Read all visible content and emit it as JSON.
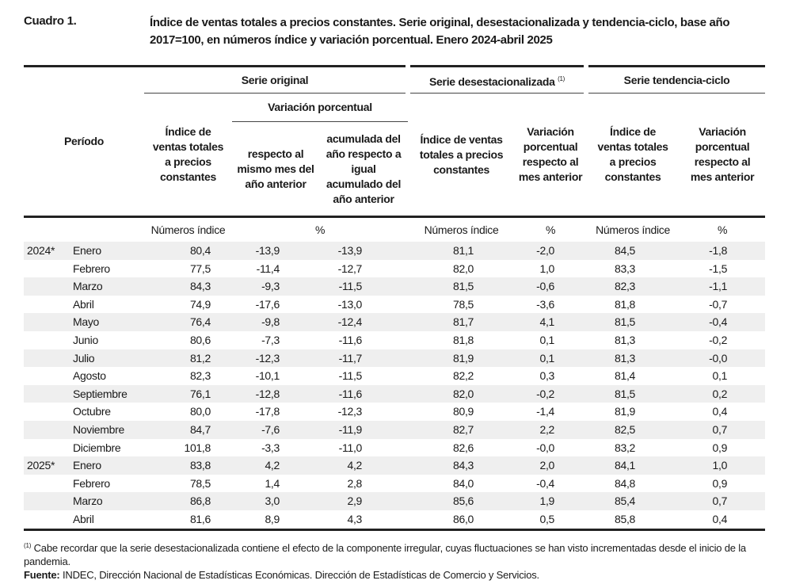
{
  "header": {
    "label": "Cuadro 1.",
    "title": "Índice de ventas totales a precios constantes. Serie original, desestacionalizada y tendencia-ciclo, base año 2017=100, en números índice y variación porcentual. Enero 2024-abril 2025"
  },
  "columns": {
    "periodo": "Período",
    "serie_original": "Serie original",
    "serie_desestacionalizada": "Serie desestacionalizada",
    "desest_note_mark": "(1)",
    "serie_tendencia": "Serie tendencia-ciclo",
    "variacion_porcentual": "Variación porcentual",
    "indice": "Índice de ventas totales a precios constantes",
    "resp_mismo_mes": "respecto al mismo mes del año anterior",
    "acumulada": "acumulada del año respecto a igual acumulado del año anterior",
    "var_mes_anterior": "Variación porcentual respecto al mes anterior"
  },
  "units": [
    "Números índice",
    "%",
    "Números índice",
    "%",
    "Números índice",
    "%"
  ],
  "rows": [
    {
      "year": "2024*",
      "month": "Enero",
      "values": [
        "80,4",
        "-13,9",
        "-13,9",
        "81,1",
        "-2,0",
        "84,5",
        "-1,8"
      ]
    },
    {
      "year": "",
      "month": "Febrero",
      "values": [
        "77,5",
        "-11,4",
        "-12,7",
        "82,0",
        "1,0",
        "83,3",
        "-1,5"
      ]
    },
    {
      "year": "",
      "month": "Marzo",
      "values": [
        "84,3",
        "-9,3",
        "-11,5",
        "81,5",
        "-0,6",
        "82,3",
        "-1,1"
      ]
    },
    {
      "year": "",
      "month": "Abril",
      "values": [
        "74,9",
        "-17,6",
        "-13,0",
        "78,5",
        "-3,6",
        "81,8",
        "-0,7"
      ]
    },
    {
      "year": "",
      "month": "Mayo",
      "values": [
        "76,4",
        "-9,8",
        "-12,4",
        "81,7",
        "4,1",
        "81,5",
        "-0,4"
      ]
    },
    {
      "year": "",
      "month": "Junio",
      "values": [
        "80,6",
        "-7,3",
        "-11,6",
        "81,8",
        "0,1",
        "81,3",
        "-0,2"
      ]
    },
    {
      "year": "",
      "month": "Julio",
      "values": [
        "81,2",
        "-12,3",
        "-11,7",
        "81,9",
        "0,1",
        "81,3",
        "-0,0"
      ]
    },
    {
      "year": "",
      "month": "Agosto",
      "values": [
        "82,3",
        "-10,1",
        "-11,5",
        "82,2",
        "0,3",
        "81,4",
        "0,1"
      ]
    },
    {
      "year": "",
      "month": "Septiembre",
      "values": [
        "76,1",
        "-12,8",
        "-11,6",
        "82,0",
        "-0,2",
        "81,5",
        "0,2"
      ]
    },
    {
      "year": "",
      "month": "Octubre",
      "values": [
        "80,0",
        "-17,8",
        "-12,3",
        "80,9",
        "-1,4",
        "81,9",
        "0,4"
      ]
    },
    {
      "year": "",
      "month": "Noviembre",
      "values": [
        "84,7",
        "-7,6",
        "-11,9",
        "82,7",
        "2,2",
        "82,5",
        "0,7"
      ]
    },
    {
      "year": "",
      "month": "Diciembre",
      "values": [
        "101,8",
        "-3,3",
        "-11,0",
        "82,6",
        "-0,0",
        "83,2",
        "0,9"
      ]
    },
    {
      "year": "2025*",
      "month": "Enero",
      "values": [
        "83,8",
        "4,2",
        "4,2",
        "84,3",
        "2,0",
        "84,1",
        "1,0"
      ]
    },
    {
      "year": "",
      "month": "Febrero",
      "values": [
        "78,5",
        "1,4",
        "2,8",
        "84,0",
        "-0,4",
        "84,8",
        "0,9"
      ]
    },
    {
      "year": "",
      "month": "Marzo",
      "values": [
        "86,8",
        "3,0",
        "2,9",
        "85,6",
        "1,9",
        "85,4",
        "0,7"
      ]
    },
    {
      "year": "",
      "month": "Abril",
      "values": [
        "81,6",
        "8,9",
        "4,3",
        "86,0",
        "0,5",
        "85,8",
        "0,4"
      ]
    }
  ],
  "notes": {
    "footnote_mark": "(1)",
    "footnote": "Cabe recordar que la serie desestacionalizada contiene el efecto de la componente irregular, cuyas fluctuaciones se han visto incrementadas desde el inicio de la pandemia.",
    "source_label": "Fuente:",
    "source": "INDEC, Dirección Nacional de Estadísticas Económicas. Dirección de Estadísticas de Comercio y Servicios."
  }
}
